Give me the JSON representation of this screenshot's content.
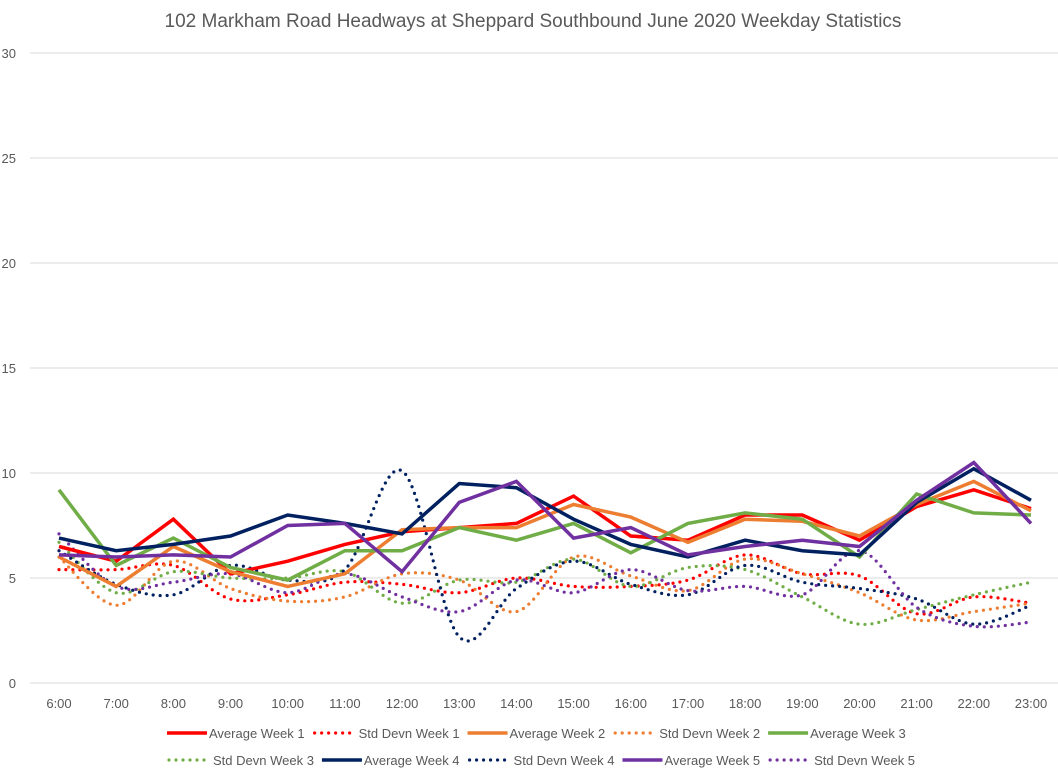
{
  "chart_data": {
    "type": "line",
    "title": "102 Markham Road Headways at Sheppard Southbound June 2020 Weekday Statistics",
    "xlabel": "",
    "ylabel": "",
    "ylim": [
      0,
      30
    ],
    "yticks": [
      0,
      5,
      10,
      15,
      20,
      25,
      30
    ],
    "grid": true,
    "legend_position": "bottom",
    "categories": [
      "6:00",
      "7:00",
      "8:00",
      "9:00",
      "10:00",
      "11:00",
      "12:00",
      "13:00",
      "14:00",
      "15:00",
      "16:00",
      "17:00",
      "18:00",
      "19:00",
      "20:00",
      "21:00",
      "22:00",
      "23:00"
    ],
    "series": [
      {
        "name": "Average Week 1",
        "color": "#ff0000",
        "style": "solid",
        "values": [
          6.5,
          5.8,
          7.8,
          5.2,
          5.8,
          6.6,
          7.2,
          7.4,
          7.6,
          8.9,
          7.0,
          6.8,
          8.0,
          8.0,
          6.8,
          8.4,
          9.2,
          8.3
        ]
      },
      {
        "name": "Std Devn Week 1",
        "color": "#ff0000",
        "style": "dotted",
        "values": [
          5.4,
          5.4,
          5.6,
          4.0,
          4.2,
          4.8,
          4.7,
          4.3,
          5.0,
          4.6,
          4.6,
          4.9,
          6.1,
          5.2,
          5.1,
          3.3,
          4.1,
          3.8
        ]
      },
      {
        "name": "Average Week 2",
        "color": "#ed7d31",
        "style": "solid",
        "values": [
          6.0,
          4.6,
          6.5,
          5.3,
          4.6,
          5.2,
          7.3,
          7.4,
          7.4,
          8.5,
          7.9,
          6.7,
          7.8,
          7.7,
          7.0,
          8.5,
          9.6,
          8.2
        ]
      },
      {
        "name": "Std Devn Week 2",
        "color": "#ed7d31",
        "style": "dotted",
        "values": [
          6.0,
          3.7,
          5.8,
          4.5,
          3.9,
          4.1,
          5.2,
          4.9,
          3.4,
          6.0,
          5.1,
          4.4,
          5.9,
          5.2,
          4.3,
          3.0,
          3.4,
          3.8
        ]
      },
      {
        "name": "Average Week 3",
        "color": "#70ad47",
        "style": "solid",
        "values": [
          9.2,
          5.6,
          6.9,
          5.5,
          4.9,
          6.3,
          6.3,
          7.4,
          6.8,
          7.6,
          6.2,
          7.6,
          8.1,
          7.8,
          6.0,
          9.0,
          8.1,
          8.0
        ]
      },
      {
        "name": "Std Devn Week 3",
        "color": "#70ad47",
        "style": "dotted",
        "values": [
          6.7,
          4.3,
          5.3,
          5.0,
          5.0,
          5.3,
          3.8,
          4.9,
          4.8,
          5.9,
          4.6,
          5.5,
          5.4,
          4.1,
          2.8,
          3.5,
          4.2,
          4.8
        ]
      },
      {
        "name": "Average Week 4",
        "color": "#002060",
        "style": "solid",
        "values": [
          6.9,
          6.3,
          6.6,
          7.0,
          8.0,
          7.6,
          7.1,
          9.5,
          9.3,
          7.8,
          6.6,
          6.0,
          6.8,
          6.3,
          6.1,
          8.6,
          10.2,
          8.7
        ]
      },
      {
        "name": "Std Devn Week 4",
        "color": "#002060",
        "style": "dotted",
        "values": [
          6.3,
          4.7,
          4.2,
          5.6,
          4.9,
          5.4,
          10.1,
          2.2,
          4.5,
          5.8,
          4.7,
          4.2,
          5.6,
          4.8,
          4.5,
          4.0,
          2.8,
          3.7
        ]
      },
      {
        "name": "Average Week 5",
        "color": "#7030a0",
        "style": "solid",
        "values": [
          6.1,
          6.0,
          6.1,
          6.0,
          7.5,
          7.6,
          5.3,
          8.6,
          9.6,
          6.9,
          7.4,
          6.1,
          6.5,
          6.8,
          6.5,
          8.7,
          10.5,
          7.6
        ]
      },
      {
        "name": "Std Devn Week 5",
        "color": "#7030a0",
        "style": "dotted",
        "values": [
          7.1,
          4.6,
          4.8,
          5.2,
          4.3,
          5.2,
          4.1,
          3.4,
          4.9,
          4.3,
          5.4,
          4.4,
          4.6,
          4.2,
          6.3,
          3.6,
          2.7,
          2.9
        ]
      }
    ]
  }
}
